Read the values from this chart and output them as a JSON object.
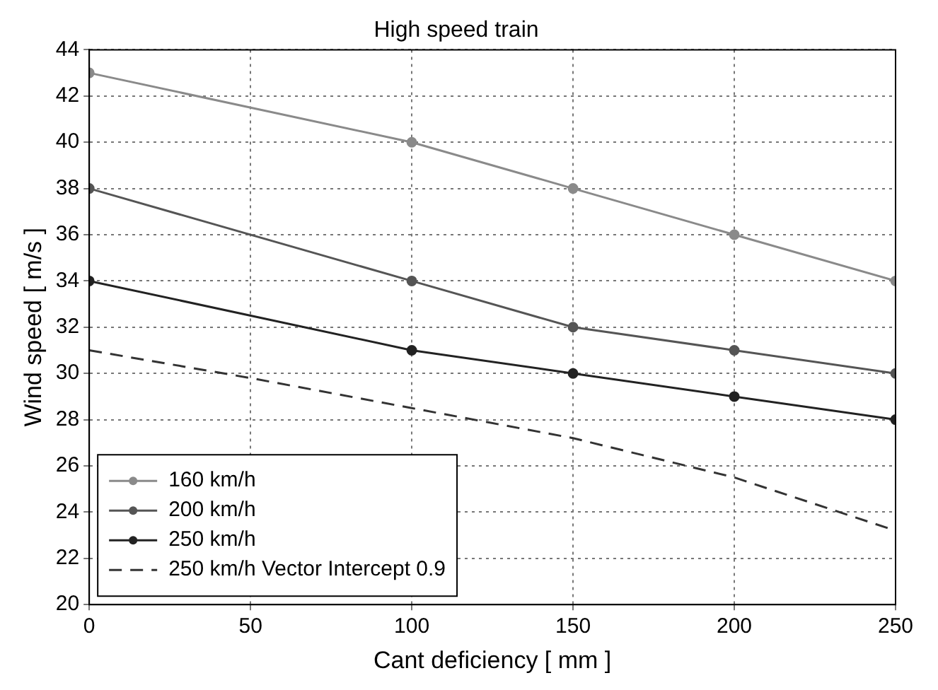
{
  "chart_data": {
    "type": "line",
    "title": "High speed train",
    "xlabel": "Cant deficiency [ mm ]",
    "ylabel": "Wind speed [ m/s ]",
    "x": [
      0,
      100,
      150,
      200,
      250
    ],
    "series": [
      {
        "name": "160 km/h",
        "color": "#8a8a8a",
        "marker": "circle",
        "values": [
          43,
          40,
          38,
          36,
          34
        ]
      },
      {
        "name": "200 km/h",
        "color": "#555555",
        "marker": "circle",
        "values": [
          38,
          34,
          32,
          31,
          30
        ]
      },
      {
        "name": "250 km/h",
        "color": "#222222",
        "marker": "circle",
        "values": [
          34,
          31,
          30,
          29,
          28
        ]
      },
      {
        "name": "250 km/h Vector Intercept 0.9",
        "color": "#333333",
        "marker": "none",
        "line_style": "dashed",
        "x": [
          0,
          50,
          100,
          150,
          200,
          250
        ],
        "values": [
          31,
          29.8,
          28.5,
          27.2,
          25.5,
          23.2
        ]
      }
    ],
    "xlim": [
      0,
      250
    ],
    "xticks": [
      0,
      50,
      100,
      150,
      200,
      250
    ],
    "ylim": [
      20,
      44
    ],
    "yticks": [
      20,
      22,
      24,
      26,
      28,
      30,
      32,
      34,
      36,
      38,
      40,
      42,
      44
    ],
    "grid": true,
    "legend": "bottom left"
  }
}
